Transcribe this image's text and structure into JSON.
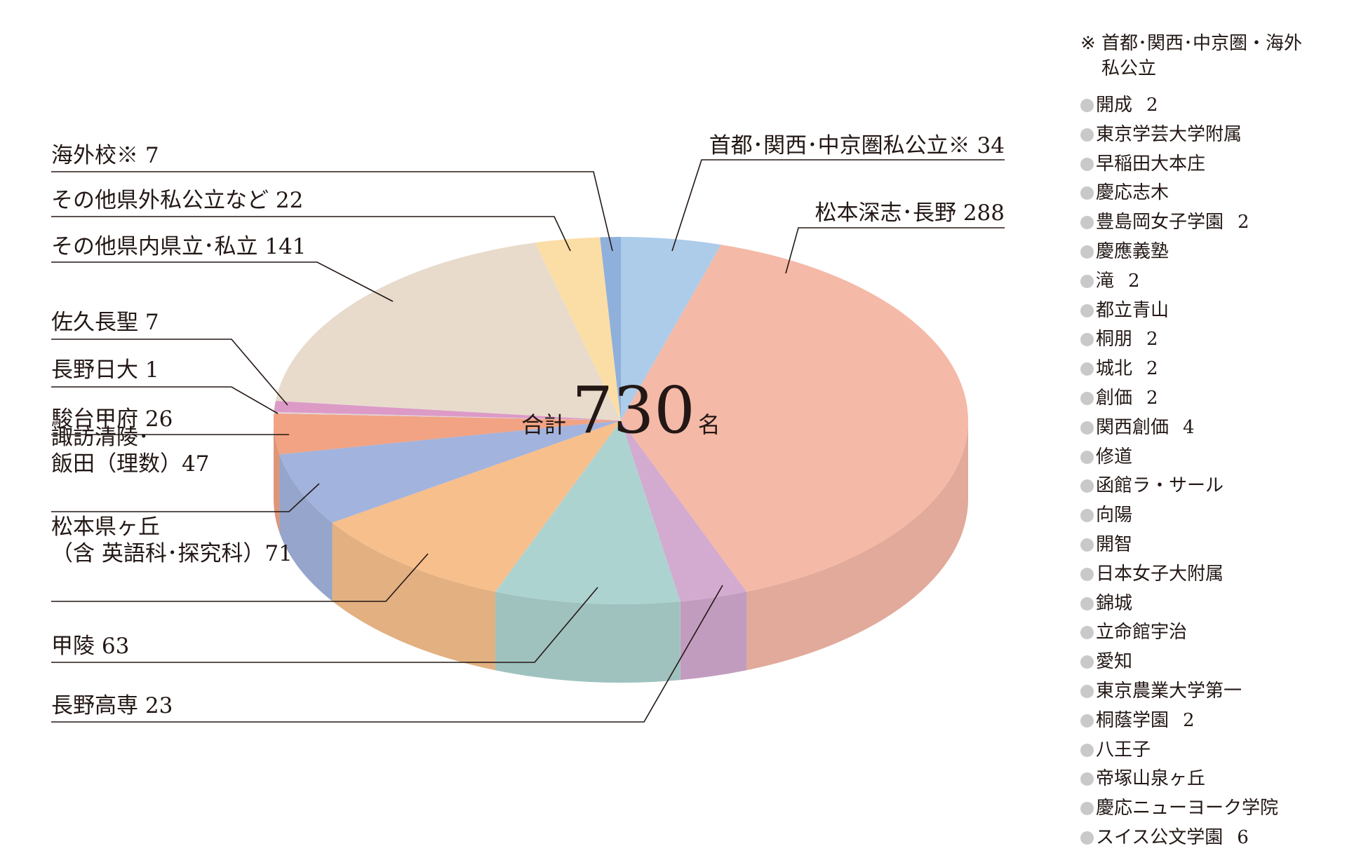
{
  "chart_data": {
    "type": "pie",
    "total_prefix": "合計",
    "total": "730",
    "total_suffix": "名",
    "slices": [
      {
        "key": "shuto",
        "label": "首都･関西･中京圏私公立※ 34",
        "value": 34,
        "color": "#acccea"
      },
      {
        "key": "matsumoto_fukashi",
        "label": "松本深志･長野 288",
        "value": 288,
        "color": "#f5b9a7"
      },
      {
        "key": "nagano_kosen",
        "label": "長野高専 23",
        "value": 23,
        "color": "#d3aad0"
      },
      {
        "key": "koryo",
        "label": "甲陵 63",
        "value": 63,
        "color": "#add3d0"
      },
      {
        "key": "matsumoto_kengaoka",
        "label": "松本県ヶ丘\n（含 英語科･探究科）71",
        "value": 71,
        "color": "#f7bf8c"
      },
      {
        "key": "suwa_iida",
        "label": "諏訪清陵･\n飯田（理数）47",
        "value": 47,
        "color": "#a2b3dd"
      },
      {
        "key": "sundai_kofu",
        "label": "駿台甲府 26",
        "value": 26,
        "color": "#f1a383"
      },
      {
        "key": "nagano_nichidai",
        "label": "長野日大 1",
        "value": 1,
        "color": "#e0d1d6"
      },
      {
        "key": "saku_chosei",
        "label": "佐久長聖 7",
        "value": 7,
        "color": "#dc9ac7"
      },
      {
        "key": "other_in_pref",
        "label": "その他県内県立･私立 141",
        "value": 141,
        "color": "#e8dbcc"
      },
      {
        "key": "other_out_pref",
        "label": "その他県外私公立など 22",
        "value": 22,
        "color": "#fbdea6"
      },
      {
        "key": "overseas",
        "label": "海外校※ 7",
        "value": 7,
        "color": "#8fb0db"
      }
    ]
  },
  "side_note": {
    "mark": "※",
    "line1": "首都･関西･中京圏・海外",
    "line2": "私公立"
  },
  "schools": [
    {
      "name": "開成",
      "count": "2"
    },
    {
      "name": "東京学芸大学附属",
      "count": ""
    },
    {
      "name": "早稲田大本庄",
      "count": ""
    },
    {
      "name": "慶応志木",
      "count": ""
    },
    {
      "name": "豊島岡女子学園",
      "count": "2"
    },
    {
      "name": "慶應義塾",
      "count": ""
    },
    {
      "name": "滝",
      "count": "2"
    },
    {
      "name": "都立青山",
      "count": ""
    },
    {
      "name": "桐朋",
      "count": "2"
    },
    {
      "name": "城北",
      "count": "2"
    },
    {
      "name": "創価",
      "count": "2"
    },
    {
      "name": "関西創価",
      "count": "4"
    },
    {
      "name": "修道",
      "count": ""
    },
    {
      "name": "函館ラ・サール",
      "count": ""
    },
    {
      "name": "向陽",
      "count": ""
    },
    {
      "name": "開智",
      "count": ""
    },
    {
      "name": "日本女子大附属",
      "count": ""
    },
    {
      "name": "錦城",
      "count": ""
    },
    {
      "name": "立命館宇治",
      "count": ""
    },
    {
      "name": "愛知",
      "count": ""
    },
    {
      "name": "東京農業大学第一",
      "count": ""
    },
    {
      "name": "桐蔭学園",
      "count": "2"
    },
    {
      "name": "八王子",
      "count": ""
    },
    {
      "name": "帝塚山泉ヶ丘",
      "count": ""
    },
    {
      "name": "慶応ニューヨーク学院",
      "count": ""
    },
    {
      "name": "スイス公文学園",
      "count": "6"
    }
  ]
}
